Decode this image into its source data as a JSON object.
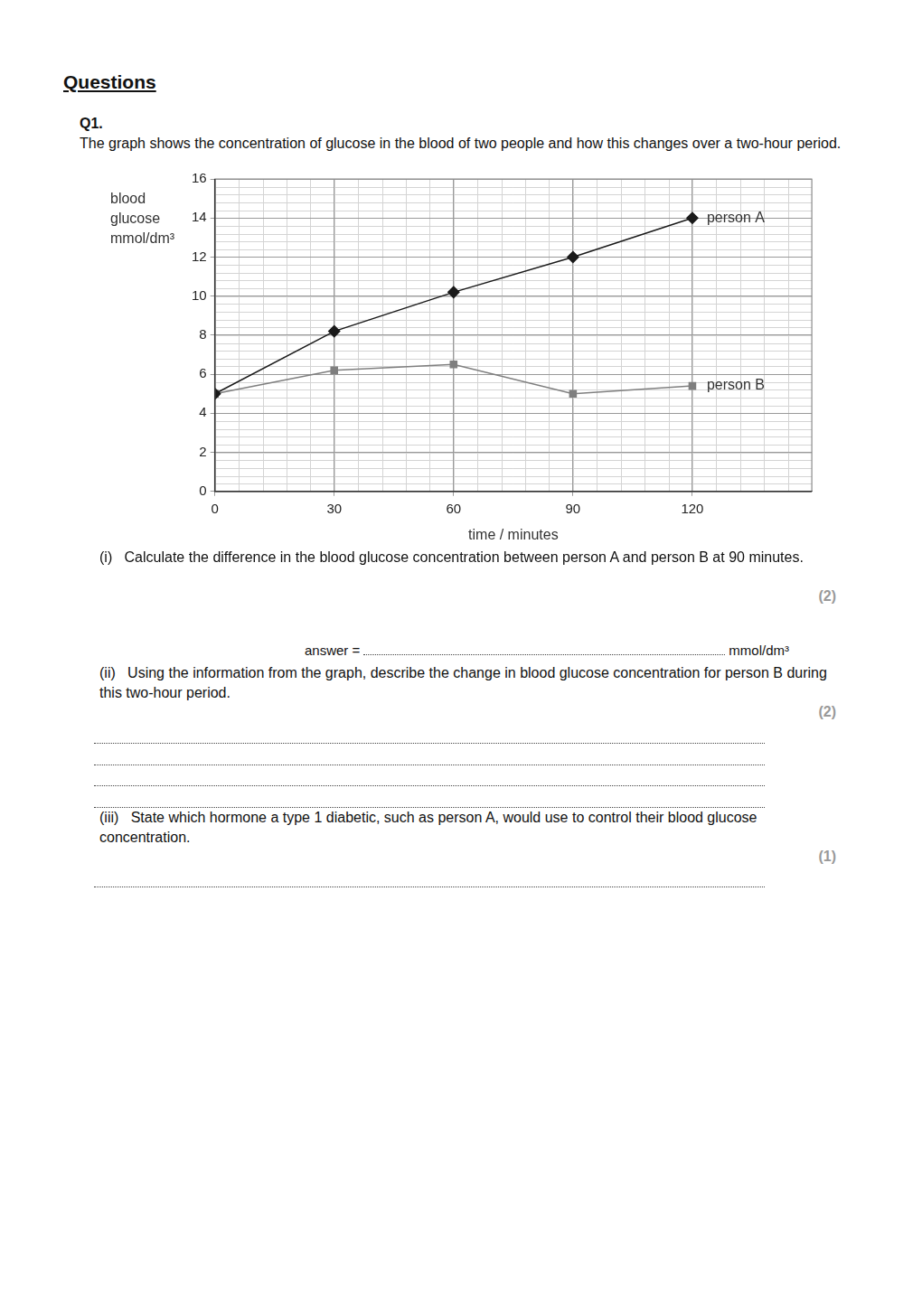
{
  "heading": "Questions",
  "question": {
    "number": "Q1.",
    "intro": "The graph shows the concentration of glucose in the blood of two people and how this changes over a two-hour period.",
    "parts": [
      {
        "label": "(i)",
        "text": "Calculate the difference in the blood glucose concentration between person A and person B at 90 minutes.",
        "marks": "(2)",
        "answer_prefix": "answer =",
        "answer_unit": "mmol/dm³"
      },
      {
        "label": "(ii)",
        "text": "Using the information from the graph, describe the change in blood glucose concentration for person B during this two-hour period.",
        "marks": "(2)"
      },
      {
        "label": "(iii)",
        "text": "State which hormone a type 1 diabetic, such as person A, would use to control their blood glucose concentration.",
        "marks": "(1)"
      }
    ]
  },
  "chart_data": {
    "type": "line",
    "x_label": "time / minutes",
    "y_label": "blood glucose mmol/dm³",
    "x": [
      0,
      30,
      60,
      90,
      120
    ],
    "series": [
      {
        "name": "person A",
        "color": "#1a1a1a",
        "marker": "diamond",
        "values": [
          5,
          8.2,
          10.2,
          12,
          14
        ]
      },
      {
        "name": "person B",
        "color": "#7f7f7f",
        "marker": "square",
        "values": [
          5,
          6.2,
          6.5,
          5,
          5.4
        ]
      }
    ],
    "xlim": [
      0,
      150
    ],
    "xticks": [
      0,
      30,
      60,
      90,
      120
    ],
    "ylim": [
      0,
      16
    ],
    "yticks": [
      0,
      2,
      4,
      6,
      8,
      10,
      12,
      14,
      16
    ],
    "grid": true
  }
}
